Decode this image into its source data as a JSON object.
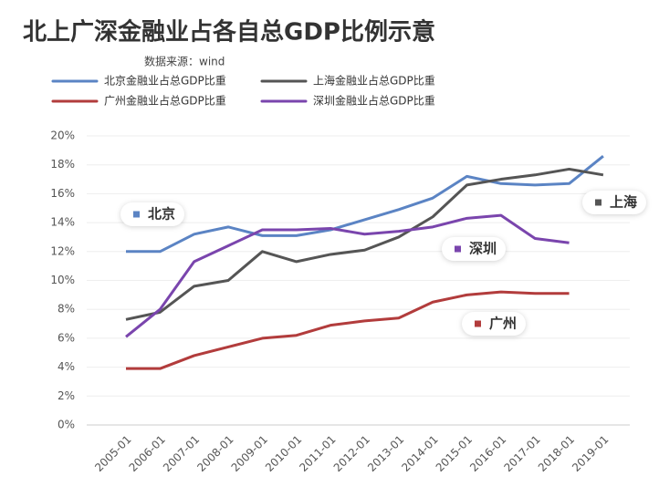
{
  "chart_data": {
    "type": "line",
    "title": "北上广深金融业占各自总GDP比例示意",
    "subtitle": "数据来源：wind",
    "categories": [
      "2005-01",
      "2006-01",
      "2007-01",
      "2008-01",
      "2009-01",
      "2010-01",
      "2011-01",
      "2012-01",
      "2013-01",
      "2014-01",
      "2015-01",
      "2016-01",
      "2017-01",
      "2018-01",
      "2019-01"
    ],
    "series": [
      {
        "name": "北京金融业占总GDP比重",
        "color": "#5b84c4",
        "values": [
          12.0,
          12.0,
          13.2,
          13.7,
          13.1,
          13.1,
          13.5,
          14.2,
          14.9,
          15.7,
          17.2,
          16.7,
          16.6,
          16.7,
          18.6
        ]
      },
      {
        "name": "上海金融业占总GDP比重",
        "color": "#555555",
        "values": [
          7.3,
          7.8,
          9.6,
          10.0,
          12.0,
          11.3,
          11.8,
          12.1,
          13.0,
          14.4,
          16.6,
          17.0,
          17.3,
          17.7,
          17.3
        ]
      },
      {
        "name": "广州金融业占总GDP比重",
        "color": "#b23c3c",
        "values": [
          3.9,
          3.9,
          4.8,
          5.4,
          6.0,
          6.2,
          6.9,
          7.2,
          7.4,
          8.5,
          9.0,
          9.2,
          9.1,
          9.1,
          null
        ]
      },
      {
        "name": "深圳金融业占总GDP比重",
        "color": "#7a45ad",
        "values": [
          6.1,
          8.0,
          11.3,
          12.4,
          13.5,
          13.5,
          13.6,
          13.2,
          13.4,
          13.7,
          14.3,
          14.5,
          12.9,
          12.6,
          null
        ]
      }
    ],
    "annotations": [
      "北京",
      "上海",
      "广州",
      "深圳"
    ],
    "ylim": [
      0,
      20
    ],
    "yticks": [
      {
        "value": 0,
        "label": "0%"
      },
      {
        "value": 2,
        "label": "2%"
      },
      {
        "value": 4,
        "label": "4%"
      },
      {
        "value": 6,
        "label": "6%"
      },
      {
        "value": 8,
        "label": "8%"
      },
      {
        "value": 10,
        "label": "10%"
      },
      {
        "value": 12,
        "label": "12%"
      },
      {
        "value": 14,
        "label": "14%"
      },
      {
        "value": 16,
        "label": "16%"
      },
      {
        "value": 18,
        "label": "18%"
      },
      {
        "value": 20,
        "label": "20%"
      }
    ],
    "grid": true
  }
}
